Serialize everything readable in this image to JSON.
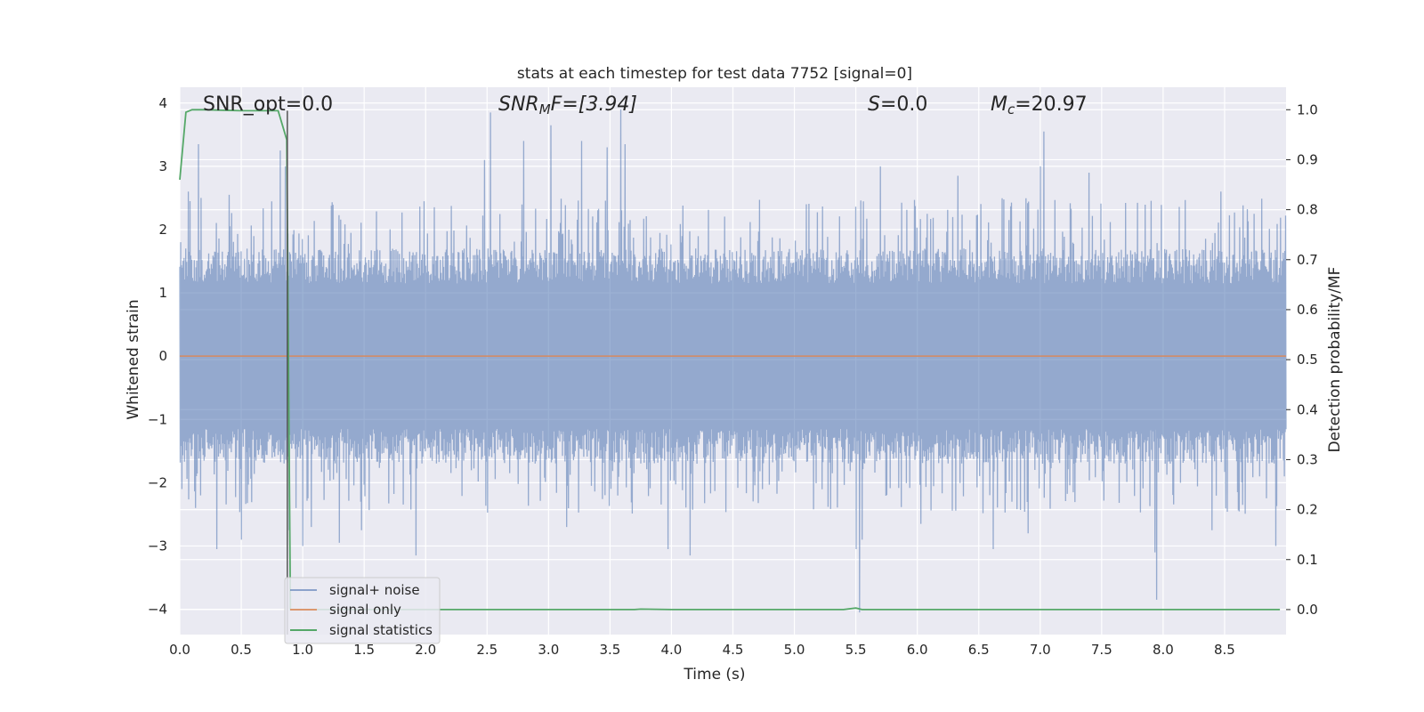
{
  "chart_data": {
    "type": "line",
    "title": "stats at each timestep for test data 7752 [signal=0]",
    "xlabel": "Time (s)",
    "ylabel": "Whitened strain",
    "ylabel_right": "Detection probability/MF",
    "xlim": [
      0.0,
      9.0
    ],
    "ylim": [
      -4.4,
      4.25
    ],
    "ylim_right": [
      -0.05,
      1.045
    ],
    "x_ticks": [
      "0.0",
      "0.5",
      "1.0",
      "1.5",
      "2.0",
      "2.5",
      "3.0",
      "3.5",
      "4.0",
      "4.5",
      "5.0",
      "5.5",
      "6.0",
      "6.5",
      "7.0",
      "7.5",
      "8.0",
      "8.5"
    ],
    "y_ticks": [
      "−4",
      "−3",
      "−2",
      "−1",
      "0",
      "1",
      "2",
      "3",
      "4"
    ],
    "y_ticks_right": [
      "0.0",
      "0.1",
      "0.2",
      "0.3",
      "0.4",
      "0.5",
      "0.6",
      "0.7",
      "0.8",
      "0.9",
      "1.0"
    ],
    "grid": true,
    "annotations": {
      "snr_opt": "SNR_opt=0.0",
      "snr_mf_main": "SNR",
      "snr_mf_sub": "M",
      "snr_mf_rest": "F=[3.94]",
      "s_main": "S",
      "s_rest": "=0.0",
      "mc_main": "M",
      "mc_sub": "c",
      "mc_rest": "=20.97"
    },
    "vertical_marker_x": 0.875,
    "legend": {
      "placement": "lower-left",
      "entries": [
        "signal+ noise",
        "signal only",
        "signal statistics"
      ]
    },
    "series": [
      {
        "name": "signal+ noise",
        "axis": "left",
        "color": "#4c72b0",
        "kind": "noise",
        "approx_range": [
          -1.7,
          1.7
        ],
        "peaks": [
          {
            "x": 0.07,
            "y": 2.6
          },
          {
            "x": 0.08,
            "y": 2.45
          },
          {
            "x": 0.15,
            "y": 3.35
          },
          {
            "x": 0.13,
            "y": -2.4
          },
          {
            "x": 0.17,
            "y": -2.2
          },
          {
            "x": 0.17,
            "y": 2.5
          },
          {
            "x": 0.3,
            "y": -3.05
          },
          {
            "x": 0.4,
            "y": 2.55
          },
          {
            "x": 0.5,
            "y": -2.9
          },
          {
            "x": 0.82,
            "y": 3.25
          },
          {
            "x": 0.86,
            "y": 3.0
          },
          {
            "x": 0.89,
            "y": -2.75
          },
          {
            "x": 1.0,
            "y": -3.0
          },
          {
            "x": 1.07,
            "y": -2.7
          },
          {
            "x": 1.3,
            "y": -2.95
          },
          {
            "x": 1.48,
            "y": -2.75
          },
          {
            "x": 1.92,
            "y": -3.15
          },
          {
            "x": 2.53,
            "y": 3.85
          },
          {
            "x": 2.48,
            "y": 3.1
          },
          {
            "x": 3.02,
            "y": 3.65
          },
          {
            "x": 2.8,
            "y": 3.4
          },
          {
            "x": 3.15,
            "y": -2.7
          },
          {
            "x": 3.27,
            "y": 3.4
          },
          {
            "x": 3.48,
            "y": 3.3
          },
          {
            "x": 3.59,
            "y": 3.9
          },
          {
            "x": 3.62,
            "y": 3.35
          },
          {
            "x": 3.97,
            "y": -3.05
          },
          {
            "x": 4.15,
            "y": -3.15
          },
          {
            "x": 5.5,
            "y": -3.05
          },
          {
            "x": 5.53,
            "y": -4.05
          },
          {
            "x": 5.55,
            "y": -2.9
          },
          {
            "x": 5.7,
            "y": 3.0
          },
          {
            "x": 6.03,
            "y": -2.65
          },
          {
            "x": 6.33,
            "y": 2.85
          },
          {
            "x": 6.62,
            "y": -3.05
          },
          {
            "x": 6.9,
            "y": -2.8
          },
          {
            "x": 7.03,
            "y": 3.55
          },
          {
            "x": 7.0,
            "y": 3.0
          },
          {
            "x": 7.4,
            "y": 2.9
          },
          {
            "x": 7.93,
            "y": -3.1
          },
          {
            "x": 7.95,
            "y": -3.85
          },
          {
            "x": 8.4,
            "y": -2.75
          },
          {
            "x": 8.47,
            "y": 2.6
          },
          {
            "x": 8.92,
            "y": -3.0
          }
        ]
      },
      {
        "name": "signal only",
        "axis": "left",
        "color": "#dd8452",
        "x": [
          0.0,
          9.0
        ],
        "y": [
          0.0,
          0.0
        ]
      },
      {
        "name": "signal statistics",
        "axis": "right",
        "color": "#55a868",
        "x": [
          0.0,
          0.05,
          0.1,
          0.2,
          0.5,
          0.8,
          0.87,
          0.9,
          0.95,
          1.0,
          2.0,
          3.0,
          3.7,
          3.75,
          4.0,
          5.4,
          5.5,
          5.55,
          6.0,
          7.0,
          8.0,
          8.95
        ],
        "y": [
          0.86,
          0.995,
          1.0,
          1.0,
          0.998,
          0.998,
          0.94,
          0.0,
          0.0,
          0.0,
          0.0,
          0.0,
          0.0,
          0.001,
          0.0,
          0.0,
          0.003,
          0.0,
          0.0,
          0.0,
          0.0,
          0.0
        ]
      }
    ]
  },
  "colors": {
    "plot_bg": "#eaeaf2",
    "grid": "#ffffff",
    "noise": "#4c72b0",
    "signal": "#dd8452",
    "stats": "#55a868"
  }
}
